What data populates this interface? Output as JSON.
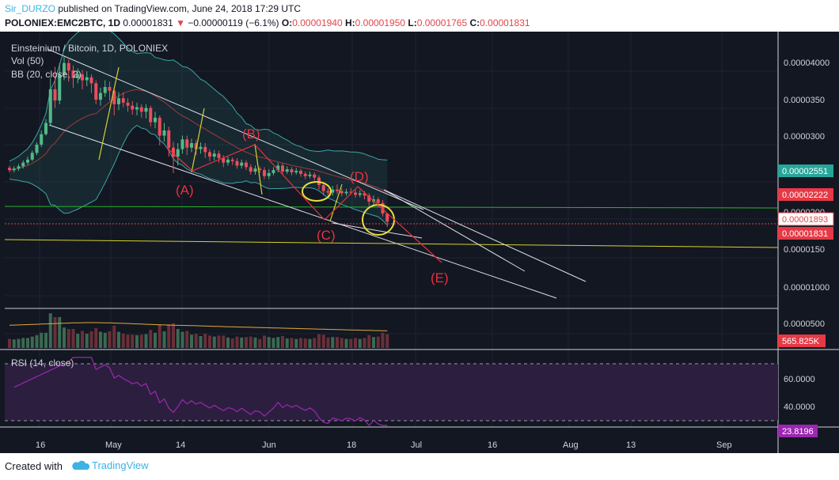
{
  "header": {
    "author": "Sir_DURZO",
    "published": "published on TradingView.com, June 24, 2018 17:29 UTC",
    "symbol": "POLONIEX:EMC2BTC, 1D",
    "last": "0.00001831",
    "change": "−0.00000119 (−6.1%)",
    "open_label": "O:",
    "open": "0.00001940",
    "high_label": "H:",
    "high": "0.00001950",
    "low_label": "L:",
    "low": "0.00001765",
    "close_label": "C:",
    "close": "0.00001831"
  },
  "legend": {
    "name": "Einsteinium / Bitcoin, 1D, POLONIEX",
    "vol": "Vol (50)",
    "bb": "BB (20, close, 2)",
    "rsi": "RSI (14, close)"
  },
  "colors": {
    "bg": "#131722",
    "up": "#53b987",
    "down": "#eb4d5c",
    "grid": "#1f2332",
    "bb_line": "#3aa6a6",
    "bb_basis": "#a33a3a",
    "green_line": "#29b32d",
    "yellow": "#d6d22c",
    "white": "#cfd3dc",
    "red": "#e8313e",
    "rsi": "#9c27b0",
    "rsi_band": "#2c1e3f"
  },
  "price_axis": {
    "ticks": [
      "0.00004000",
      "0.0000350",
      "0.0000300",
      "0.0000200",
      "0.0000150",
      "0.00001000",
      "0.0000500"
    ],
    "badges": [
      {
        "label": "0.00002551",
        "color": "#26a69a",
        "text": "#ffffff"
      },
      {
        "label": "0.00002222",
        "color": "#e63946",
        "text": "#ffffff"
      },
      {
        "label": "0.00001893",
        "color": "#ffffff",
        "text": "#e0474b"
      },
      {
        "label": "0.00001831",
        "color": "#e63946",
        "text": "#ffffff"
      },
      {
        "label": "565.825K",
        "color": "#e63946",
        "text": "#ffffff"
      }
    ]
  },
  "rsi_axis": {
    "ticks": [
      "60.0000",
      "40.0000"
    ],
    "badge": "23.8196"
  },
  "time_axis": [
    "16",
    "May",
    "14",
    "Jun",
    "18",
    "Jul",
    "16",
    "Aug",
    "13",
    "Sep"
  ],
  "annotations": [
    "(A)",
    "(B)",
    "(C)",
    "(D)",
    "(E)"
  ],
  "chart_data": {
    "type": "candlestick",
    "title": "Einsteinium / Bitcoin, 1D, POLONIEX",
    "symbol": "POLONIEX:EMC2BTC",
    "ylim": [
      1e-06,
      4.2e-05
    ],
    "indicators": [
      "Vol (50)",
      "BB (20, close, 2)",
      "RSI (14, close)"
    ],
    "price_series": [
      [
        2.55e-05,
        2.52e-05,
        2.58e-05,
        2.49e-05
      ],
      [
        2.52e-05,
        2.54e-05,
        2.57e-05,
        2.49e-05
      ],
      [
        2.54e-05,
        2.57e-05,
        2.6e-05,
        2.51e-05
      ],
      [
        2.57e-05,
        2.62e-05,
        2.65e-05,
        2.54e-05
      ],
      [
        2.62e-05,
        2.66e-05,
        2.7e-05,
        2.59e-05
      ],
      [
        2.66e-05,
        2.75e-05,
        2.78e-05,
        2.64e-05
      ],
      [
        2.75e-05,
        2.86e-05,
        2.89e-05,
        2.72e-05
      ],
      [
        2.86e-05,
        3e-05,
        3.05e-05,
        2.83e-05
      ],
      [
        3e-05,
        3.15e-05,
        3.2e-05,
        2.98e-05
      ],
      [
        3.15e-05,
        3.6e-05,
        3.75e-05,
        3.12e-05
      ],
      [
        3.6e-05,
        3.45e-05,
        3.9e-05,
        3.35e-05
      ],
      [
        3.45e-05,
        3.8e-05,
        3.95e-05,
        3.4e-05
      ],
      [
        3.8e-05,
        3.95e-05,
        4.05e-05,
        3.72e-05
      ],
      [
        3.95e-05,
        3.85e-05,
        4e-05,
        3.7e-05
      ],
      [
        3.85e-05,
        3.75e-05,
        3.92e-05,
        3.62e-05
      ],
      [
        3.75e-05,
        3.8e-05,
        3.88e-05,
        3.68e-05
      ],
      [
        3.8e-05,
        3.72e-05,
        3.86e-05,
        3.6e-05
      ],
      [
        3.72e-05,
        3.76e-05,
        3.84e-05,
        3.64e-05
      ],
      [
        3.76e-05,
        3.68e-05,
        3.8e-05,
        3.55e-05
      ],
      [
        3.68e-05,
        3.46e-05,
        3.72e-05,
        3.4e-05
      ],
      [
        3.46e-05,
        3.55e-05,
        3.62e-05,
        3.38e-05
      ],
      [
        3.55e-05,
        3.63e-05,
        3.72e-05,
        3.5e-05
      ],
      [
        3.63e-05,
        3.58e-05,
        3.7e-05,
        3.45e-05
      ],
      [
        3.58e-05,
        3.4e-05,
        3.62e-05,
        3.25e-05
      ],
      [
        3.4e-05,
        3.48e-05,
        3.56e-05,
        3.32e-05
      ],
      [
        3.48e-05,
        3.42e-05,
        3.56e-05,
        3.36e-05
      ],
      [
        3.42e-05,
        3.38e-05,
        3.48e-05,
        3.3e-05
      ],
      [
        3.38e-05,
        3.33e-05,
        3.44e-05,
        3.26e-05
      ],
      [
        3.33e-05,
        3.36e-05,
        3.42e-05,
        3.25e-05
      ],
      [
        3.36e-05,
        3.3e-05,
        3.4e-05,
        3.22e-05
      ],
      [
        3.3e-05,
        3.35e-05,
        3.4e-05,
        3.21e-05
      ],
      [
        3.35e-05,
        3.16e-05,
        3.38e-05,
        3.1e-05
      ],
      [
        3.16e-05,
        3.22e-05,
        3.3e-05,
        3.08e-05
      ],
      [
        3.22e-05,
        2.98e-05,
        3.25e-05,
        2.85e-05
      ],
      [
        2.98e-05,
        3.05e-05,
        3.15e-05,
        2.9e-05
      ],
      [
        3.05e-05,
        2.82e-05,
        3.1e-05,
        2.7e-05
      ],
      [
        2.82e-05,
        2.7e-05,
        2.9e-05,
        2.48e-05
      ],
      [
        2.7e-05,
        2.8e-05,
        2.88e-05,
        2.58e-05
      ],
      [
        2.8e-05,
        2.93e-05,
        2.98e-05,
        2.74e-05
      ],
      [
        2.93e-05,
        2.82e-05,
        2.98e-05,
        2.72e-05
      ],
      [
        2.82e-05,
        2.88e-05,
        2.94e-05,
        2.76e-05
      ],
      [
        2.88e-05,
        2.8e-05,
        2.92e-05,
        2.72e-05
      ],
      [
        2.8e-05,
        2.83e-05,
        2.89e-05,
        2.74e-05
      ],
      [
        2.83e-05,
        2.76e-05,
        2.88e-05,
        2.68e-05
      ],
      [
        2.76e-05,
        2.7e-05,
        2.8e-05,
        2.64e-05
      ],
      [
        2.7e-05,
        2.74e-05,
        2.79e-05,
        2.65e-05
      ],
      [
        2.74e-05,
        2.68e-05,
        2.78e-05,
        2.62e-05
      ],
      [
        2.68e-05,
        2.62e-05,
        2.72e-05,
        2.56e-05
      ],
      [
        2.62e-05,
        2.66e-05,
        2.7e-05,
        2.58e-05
      ],
      [
        2.66e-05,
        2.64e-05,
        2.69e-05,
        2.59e-05
      ],
      [
        2.64e-05,
        2.58e-05,
        2.68e-05,
        2.54e-05
      ],
      [
        2.58e-05,
        2.62e-05,
        2.66e-05,
        2.54e-05
      ],
      [
        2.62e-05,
        2.56e-05,
        2.65e-05,
        2.52e-05
      ],
      [
        2.56e-05,
        2.5e-05,
        2.6e-05,
        2.46e-05
      ],
      [
        2.5e-05,
        2.54e-05,
        2.58e-05,
        2.46e-05
      ],
      [
        2.54e-05,
        2.52e-05,
        2.57e-05,
        2.48e-05
      ],
      [
        2.52e-05,
        2.44e-05,
        2.56e-05,
        2.4e-05
      ],
      [
        2.44e-05,
        2.48e-05,
        2.53e-05,
        2.4e-05
      ],
      [
        2.48e-05,
        2.52e-05,
        2.56e-05,
        2.45e-05
      ],
      [
        2.52e-05,
        2.58e-05,
        2.62e-05,
        2.49e-05
      ],
      [
        2.58e-05,
        2.5e-05,
        2.61e-05,
        2.46e-05
      ],
      [
        2.5e-05,
        2.53e-05,
        2.57e-05,
        2.47e-05
      ],
      [
        2.53e-05,
        2.49e-05,
        2.56e-05,
        2.45e-05
      ],
      [
        2.49e-05,
        2.51e-05,
        2.55e-05,
        2.46e-05
      ],
      [
        2.51e-05,
        2.47e-05,
        2.54e-05,
        2.43e-05
      ],
      [
        2.47e-05,
        2.44e-05,
        2.5e-05,
        2.4e-05
      ],
      [
        2.44e-05,
        2.46e-05,
        2.5e-05,
        2.41e-05
      ],
      [
        2.46e-05,
        2.42e-05,
        2.49e-05,
        2.38e-05
      ],
      [
        2.42e-05,
        2.32e-05,
        2.45e-05,
        2.26e-05
      ],
      [
        2.32e-05,
        2.24e-05,
        2.36e-05,
        2.18e-05
      ],
      [
        2.24e-05,
        2.22e-05,
        2.28e-05,
        2.16e-05
      ],
      [
        2.22e-05,
        2.26e-05,
        2.31e-05,
        2.18e-05
      ],
      [
        2.26e-05,
        2.24e-05,
        2.33e-05,
        2.2e-05
      ],
      [
        2.24e-05,
        2.21e-05,
        2.28e-05,
        2.17e-05
      ],
      [
        2.21e-05,
        2.23e-05,
        2.27e-05,
        2.18e-05
      ],
      [
        2.23e-05,
        2.22e-05,
        2.28e-05,
        2.19e-05
      ],
      [
        2.22e-05,
        2.19e-05,
        2.26e-05,
        2.15e-05
      ],
      [
        2.19e-05,
        2.21e-05,
        2.25e-05,
        2.16e-05
      ],
      [
        2.21e-05,
        2.18e-05,
        2.24e-05,
        2.13e-05
      ],
      [
        2.18e-05,
        2.1e-05,
        2.21e-05,
        2.04e-05
      ],
      [
        2.1e-05,
        2.13e-05,
        2.18e-05,
        2.05e-05
      ],
      [
        2.13e-05,
        2.08e-05,
        2.16e-05,
        2.02e-05
      ],
      [
        2.08e-05,
        1.94e-05,
        2.12e-05,
        1.9e-05
      ],
      [
        1.94e-05,
        1.83e-05,
        1.95e-05,
        1.76e-05
      ]
    ],
    "annotations": [
      "(A)",
      "(B)",
      "(C)",
      "(D)",
      "(E)"
    ]
  }
}
